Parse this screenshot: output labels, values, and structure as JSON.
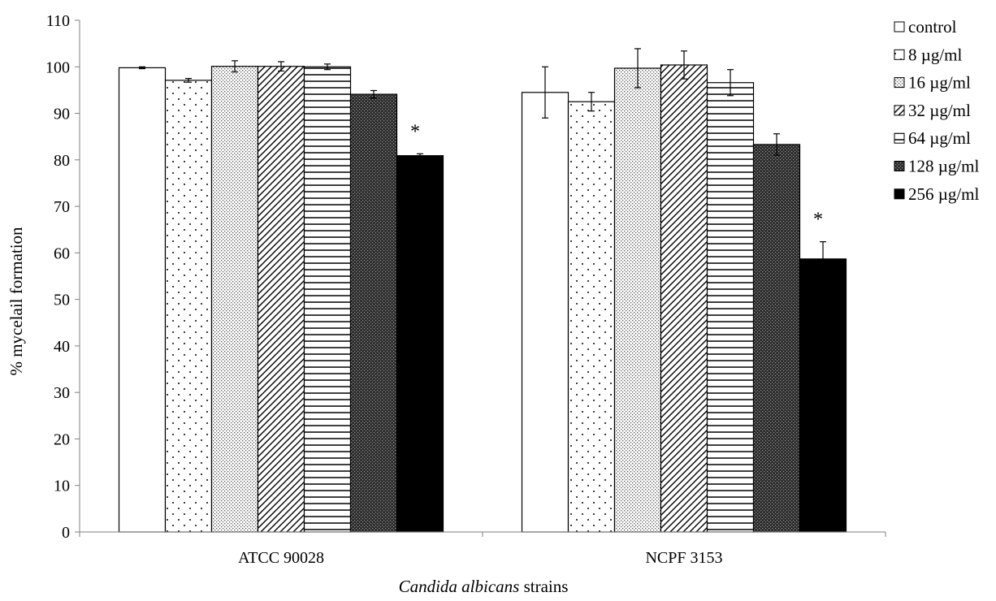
{
  "chart_data": {
    "type": "bar",
    "title": "",
    "ylabel": "% mycelail formation",
    "xlabel_italic": "Candida albicans",
    "xlabel_rest": " strains",
    "ylim": [
      0,
      110
    ],
    "yticks": [
      0,
      10,
      20,
      30,
      40,
      50,
      60,
      70,
      80,
      90,
      100,
      110
    ],
    "grid": false,
    "legend_position": "right",
    "categories": [
      "ATCC 90028",
      "NCPF 3153"
    ],
    "series": [
      {
        "name": "control",
        "pattern": "white",
        "values": [
          99.8,
          94.5
        ],
        "errors": [
          0.2,
          5.5
        ]
      },
      {
        "name": "8 µg/ml",
        "pattern": "dots",
        "values": [
          97.1,
          92.5
        ],
        "errors": [
          0.4,
          2.0
        ]
      },
      {
        "name": "16 µg/ml",
        "pattern": "fine",
        "values": [
          100.1,
          99.7
        ],
        "errors": [
          1.2,
          4.2
        ]
      },
      {
        "name": "32 µg/ml",
        "pattern": "diag",
        "values": [
          100.1,
          100.4
        ],
        "errors": [
          1.0,
          3.0
        ]
      },
      {
        "name": "64 µg/ml",
        "pattern": "hlines",
        "values": [
          100.0,
          96.6
        ],
        "errors": [
          0.6,
          2.8
        ]
      },
      {
        "name": "128 µg/ml",
        "pattern": "dark",
        "values": [
          94.1,
          83.3
        ],
        "errors": [
          0.8,
          2.3
        ]
      },
      {
        "name": "256 µg/ml",
        "pattern": "black",
        "values": [
          80.9,
          58.7
        ],
        "errors": [
          0.4,
          3.7
        ]
      }
    ],
    "annotations": [
      {
        "text": "*",
        "category": 0,
        "series": 6
      },
      {
        "text": "*",
        "category": 1,
        "series": 6
      }
    ]
  }
}
